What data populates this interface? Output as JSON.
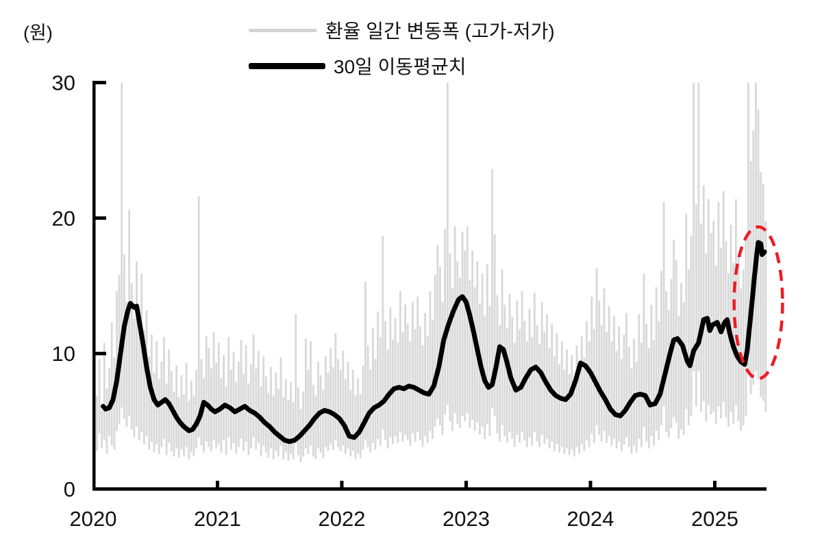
{
  "chart_data": {
    "type": "line",
    "title": "",
    "ylabel": "(원)",
    "unit_label": "(원)",
    "x_axis": {
      "ticks": [
        2020,
        2021,
        2022,
        2023,
        2024,
        2025
      ],
      "tick_labels": [
        "2020",
        "2021",
        "2022",
        "2023",
        "2024",
        "2025"
      ],
      "range": [
        2020.0,
        2025.42
      ]
    },
    "y_axis": {
      "ticks": [
        0,
        10,
        20,
        30
      ],
      "tick_labels": [
        "0",
        "10",
        "20",
        "30"
      ],
      "range": [
        0,
        30
      ]
    },
    "legend_position": "top-center",
    "grid": false,
    "series": [
      {
        "name": "환율 일간 변동폭 (고가-저가)",
        "type": "daily-range-spikes",
        "color": "#d8d8d8",
        "x_start": 2020.01,
        "x_step": 0.02,
        "hi": [
          11.8,
          6.9,
          9.6,
          5.8,
          10.8,
          7.4,
          8.9,
          12.3,
          9.7,
          14.6,
          15.8,
          30,
          17.3,
          13.8,
          20.6,
          15.2,
          12.6,
          16.8,
          13.4,
          15.9,
          11.7,
          13.2,
          9.8,
          11.4,
          8.6,
          10.9,
          8.1,
          9.4,
          11.2,
          7.8,
          10.3,
          8.7,
          7.2,
          9.1,
          6.8,
          8.4,
          7.0,
          9.3,
          6.5,
          8.0,
          6.9,
          8.8,
          21.6,
          9.6,
          8.2,
          11.3,
          10.4,
          8.9,
          11.6,
          9.3,
          10.8,
          8.2,
          9.9,
          7.6,
          11.2,
          8.8,
          10.1,
          7.9,
          9.4,
          11.0,
          8.5,
          10.6,
          7.8,
          9.2,
          11.4,
          8.9,
          10.2,
          7.6,
          9.8,
          8.3,
          7.1,
          9.0,
          6.9,
          8.6,
          7.4,
          9.7,
          6.8,
          8.1,
          6.6,
          7.9,
          6.4,
          12.9,
          7.5,
          5.9,
          7.2,
          11.1,
          8.8,
          10.9,
          7.7,
          6.9,
          9.4,
          8.4,
          7.3,
          9.8,
          8.6,
          10.4,
          9.0,
          11.5,
          9.6,
          8.8,
          10.2,
          8.1,
          9.4,
          7.3,
          8.8,
          6.9,
          8.2,
          7.0,
          9.1,
          15.3,
          10.6,
          8.8,
          11.9,
          9.6,
          13.1,
          11.2,
          18.7,
          12.4,
          10.3,
          13.4,
          11.0,
          12.6,
          10.8,
          14.6,
          11.6,
          13.6,
          12.2,
          10.9,
          13.8,
          11.8,
          14.2,
          12.0,
          10.6,
          13.0,
          11.3,
          14.6,
          12.5,
          15.8,
          18.0,
          16.4,
          13.8,
          19.2,
          30,
          17.4,
          14.8,
          19.4,
          16.8,
          15.6,
          19.0,
          17.6,
          19.4,
          15.4,
          17.6,
          14.9,
          16.8,
          13.7,
          15.9,
          12.8,
          16.6,
          13.5,
          23.6,
          18.8,
          14.3,
          12.1,
          16.2,
          13.6,
          11.9,
          14.4,
          12.7,
          10.8,
          13.9,
          11.8,
          14.6,
          12.4,
          10.9,
          13.3,
          11.2,
          14.5,
          12.1,
          10.7,
          13.8,
          11.6,
          12.9,
          10.4,
          12.2,
          9.8,
          11.5,
          9.2,
          10.9,
          8.8,
          10.3,
          8.5,
          9.9,
          8.2,
          10.6,
          9.1,
          11.3,
          9.7,
          12.4,
          10.9,
          14.2,
          11.8,
          16.3,
          13.9,
          12.1,
          14.8,
          11.6,
          13.5,
          10.9,
          12.8,
          10.2,
          12.0,
          9.6,
          11.4,
          13.0,
          10.5,
          8.9,
          11.1,
          9.4,
          12.9,
          10.8,
          15.9,
          12.2,
          10.4,
          13.6,
          11.0,
          14.9,
          12.4,
          16.1,
          21.2,
          14.6,
          13.2,
          15.5,
          18.4,
          16.9,
          12.8,
          15.2,
          13.8,
          20.3,
          16.2,
          18.7,
          30,
          21.0,
          30,
          19.6,
          22.4,
          17.4,
          21.4,
          18.9,
          19.8,
          16.5,
          21.2,
          17.8,
          22.0,
          18.3,
          15.9,
          19.5,
          16.7,
          21.4,
          17.2,
          14.8,
          16.2,
          18.6,
          30,
          24.2,
          26.5,
          30,
          28.0,
          23.4,
          22.5,
          19.8
        ],
        "lo": [
          3.4,
          2.8,
          4.1,
          3.0,
          3.6,
          2.6,
          3.9,
          3.2,
          2.9,
          4.3,
          4.8,
          6.0,
          5.2,
          4.6,
          5.4,
          4.4,
          3.8,
          4.6,
          3.6,
          4.2,
          3.3,
          3.9,
          2.9,
          3.5,
          2.7,
          3.3,
          2.6,
          3.1,
          3.7,
          2.5,
          3.4,
          2.8,
          2.4,
          3.0,
          2.3,
          2.9,
          2.4,
          3.1,
          2.2,
          2.7,
          2.4,
          3.0,
          3.8,
          3.2,
          2.7,
          3.5,
          3.1,
          2.8,
          3.6,
          3.0,
          3.3,
          2.7,
          3.6,
          2.5,
          3.8,
          2.9,
          3.4,
          2.6,
          3.1,
          3.7,
          2.8,
          3.5,
          2.5,
          3.0,
          3.8,
          2.9,
          3.4,
          2.4,
          3.2,
          2.7,
          2.3,
          3.0,
          2.2,
          2.8,
          2.4,
          3.2,
          2.2,
          2.7,
          2.1,
          2.6,
          2.2,
          3.4,
          2.5,
          2.0,
          2.4,
          3.0,
          2.6,
          3.2,
          2.4,
          2.2,
          3.0,
          2.7,
          2.3,
          3.1,
          2.8,
          3.3,
          2.9,
          3.6,
          3.1,
          2.8,
          3.2,
          2.6,
          3.0,
          2.4,
          2.8,
          2.2,
          2.6,
          2.3,
          2.9,
          3.6,
          3.1,
          2.7,
          3.4,
          2.9,
          3.7,
          3.2,
          4.4,
          3.6,
          3.0,
          3.8,
          3.3,
          3.9,
          3.4,
          4.2,
          3.5,
          4.0,
          3.6,
          3.2,
          4.1,
          3.5,
          4.2,
          3.6,
          3.1,
          3.9,
          3.4,
          4.3,
          3.7,
          4.6,
          5.2,
          4.7,
          4.0,
          5.5,
          6.2,
          5.0,
          4.3,
          5.6,
          4.8,
          4.5,
          5.4,
          5.0,
          5.6,
          4.5,
          5.1,
          4.3,
          4.9,
          4.0,
          4.6,
          3.7,
          4.8,
          3.9,
          6.0,
          5.4,
          4.1,
          3.5,
          4.7,
          3.9,
          3.4,
          4.2,
          3.7,
          3.1,
          4.0,
          3.4,
          4.2,
          3.6,
          3.1,
          3.8,
          3.2,
          4.2,
          3.5,
          3.1,
          4.0,
          3.3,
          3.7,
          3.0,
          3.5,
          2.8,
          3.3,
          2.7,
          3.1,
          2.6,
          3.0,
          2.5,
          2.9,
          2.4,
          3.1,
          2.6,
          3.3,
          2.8,
          3.6,
          3.1,
          4.1,
          3.4,
          4.7,
          4.0,
          3.5,
          4.3,
          3.4,
          3.9,
          3.2,
          3.7,
          3.0,
          3.5,
          2.8,
          3.3,
          3.8,
          3.1,
          2.6,
          3.2,
          2.7,
          3.7,
          3.1,
          4.6,
          3.5,
          3.0,
          3.9,
          3.2,
          4.3,
          3.6,
          4.7,
          6.1,
          4.2,
          3.8,
          4.5,
          5.3,
          4.9,
          3.7,
          4.4,
          4.0,
          5.9,
          4.7,
          5.4,
          8.7,
          6.1,
          8.7,
          5.7,
          6.5,
          5.0,
          6.2,
          5.5,
          5.7,
          4.8,
          6.1,
          5.2,
          6.4,
          5.3,
          4.6,
          5.7,
          4.8,
          6.2,
          5.0,
          4.3,
          4.7,
          5.4,
          8.7,
          7.0,
          7.7,
          8.7,
          8.1,
          6.8,
          6.5,
          5.7
        ]
      },
      {
        "name": "30일 이동평균치",
        "type": "line",
        "color": "#000000",
        "points": [
          [
            2020.08,
            6.1
          ],
          [
            2020.1,
            5.9
          ],
          [
            2020.13,
            6.0
          ],
          [
            2020.16,
            6.6
          ],
          [
            2020.19,
            8.0
          ],
          [
            2020.22,
            10.0
          ],
          [
            2020.25,
            12.0
          ],
          [
            2020.28,
            13.2
          ],
          [
            2020.3,
            13.7
          ],
          [
            2020.33,
            13.4
          ],
          [
            2020.35,
            13.5
          ],
          [
            2020.37,
            12.4
          ],
          [
            2020.4,
            10.8
          ],
          [
            2020.43,
            9.0
          ],
          [
            2020.46,
            7.5
          ],
          [
            2020.49,
            6.6
          ],
          [
            2020.52,
            6.2
          ],
          [
            2020.55,
            6.4
          ],
          [
            2020.58,
            6.6
          ],
          [
            2020.61,
            6.3
          ],
          [
            2020.64,
            5.8
          ],
          [
            2020.67,
            5.3
          ],
          [
            2020.7,
            4.9
          ],
          [
            2020.73,
            4.6
          ],
          [
            2020.77,
            4.3
          ],
          [
            2020.8,
            4.4
          ],
          [
            2020.83,
            4.8
          ],
          [
            2020.86,
            5.4
          ],
          [
            2020.89,
            6.4
          ],
          [
            2020.92,
            6.2
          ],
          [
            2020.95,
            5.9
          ],
          [
            2020.98,
            5.7
          ],
          [
            2021.02,
            5.9
          ],
          [
            2021.06,
            6.2
          ],
          [
            2021.1,
            6.0
          ],
          [
            2021.14,
            5.7
          ],
          [
            2021.18,
            5.9
          ],
          [
            2021.22,
            6.1
          ],
          [
            2021.26,
            5.8
          ],
          [
            2021.3,
            5.6
          ],
          [
            2021.34,
            5.3
          ],
          [
            2021.38,
            4.9
          ],
          [
            2021.42,
            4.6
          ],
          [
            2021.46,
            4.2
          ],
          [
            2021.5,
            3.9
          ],
          [
            2021.54,
            3.6
          ],
          [
            2021.58,
            3.5
          ],
          [
            2021.62,
            3.6
          ],
          [
            2021.66,
            3.9
          ],
          [
            2021.7,
            4.3
          ],
          [
            2021.74,
            4.7
          ],
          [
            2021.78,
            5.2
          ],
          [
            2021.82,
            5.6
          ],
          [
            2021.86,
            5.8
          ],
          [
            2021.9,
            5.7
          ],
          [
            2021.94,
            5.5
          ],
          [
            2021.98,
            5.2
          ],
          [
            2022.02,
            4.7
          ],
          [
            2022.06,
            3.9
          ],
          [
            2022.1,
            3.8
          ],
          [
            2022.14,
            4.2
          ],
          [
            2022.18,
            4.9
          ],
          [
            2022.22,
            5.6
          ],
          [
            2022.26,
            6.0
          ],
          [
            2022.3,
            6.2
          ],
          [
            2022.34,
            6.5
          ],
          [
            2022.38,
            7.0
          ],
          [
            2022.42,
            7.4
          ],
          [
            2022.46,
            7.5
          ],
          [
            2022.5,
            7.4
          ],
          [
            2022.54,
            7.6
          ],
          [
            2022.58,
            7.5
          ],
          [
            2022.62,
            7.3
          ],
          [
            2022.66,
            7.1
          ],
          [
            2022.7,
            7.0
          ],
          [
            2022.74,
            7.6
          ],
          [
            2022.78,
            9.0
          ],
          [
            2022.82,
            11.0
          ],
          [
            2022.86,
            12.2
          ],
          [
            2022.9,
            13.2
          ],
          [
            2022.94,
            14.0
          ],
          [
            2022.97,
            14.2
          ],
          [
            2023.0,
            13.8
          ],
          [
            2023.03,
            12.8
          ],
          [
            2023.06,
            11.6
          ],
          [
            2023.09,
            10.3
          ],
          [
            2023.12,
            9.0
          ],
          [
            2023.15,
            8.0
          ],
          [
            2023.18,
            7.5
          ],
          [
            2023.21,
            7.7
          ],
          [
            2023.24,
            9.0
          ],
          [
            2023.27,
            10.5
          ],
          [
            2023.3,
            10.3
          ],
          [
            2023.33,
            9.3
          ],
          [
            2023.36,
            8.2
          ],
          [
            2023.4,
            7.3
          ],
          [
            2023.44,
            7.5
          ],
          [
            2023.48,
            8.2
          ],
          [
            2023.52,
            8.8
          ],
          [
            2023.56,
            9.0
          ],
          [
            2023.6,
            8.6
          ],
          [
            2023.64,
            7.9
          ],
          [
            2023.68,
            7.3
          ],
          [
            2023.72,
            6.9
          ],
          [
            2023.76,
            6.7
          ],
          [
            2023.8,
            6.6
          ],
          [
            2023.84,
            7.0
          ],
          [
            2023.88,
            8.0
          ],
          [
            2023.92,
            9.3
          ],
          [
            2023.96,
            9.1
          ],
          [
            2024.0,
            8.6
          ],
          [
            2024.04,
            7.9
          ],
          [
            2024.08,
            7.2
          ],
          [
            2024.12,
            6.6
          ],
          [
            2024.16,
            5.9
          ],
          [
            2024.2,
            5.5
          ],
          [
            2024.24,
            5.4
          ],
          [
            2024.28,
            5.8
          ],
          [
            2024.32,
            6.4
          ],
          [
            2024.36,
            6.9
          ],
          [
            2024.4,
            7.0
          ],
          [
            2024.44,
            6.9
          ],
          [
            2024.48,
            6.2
          ],
          [
            2024.52,
            6.3
          ],
          [
            2024.56,
            7.0
          ],
          [
            2024.6,
            8.5
          ],
          [
            2024.64,
            10.0
          ],
          [
            2024.67,
            11.0
          ],
          [
            2024.7,
            11.1
          ],
          [
            2024.74,
            10.6
          ],
          [
            2024.78,
            9.4
          ],
          [
            2024.8,
            9.1
          ],
          [
            2024.83,
            10.2
          ],
          [
            2024.87,
            10.8
          ],
          [
            2024.91,
            12.5
          ],
          [
            2024.94,
            12.6
          ],
          [
            2024.96,
            11.7
          ],
          [
            2024.98,
            12.1
          ],
          [
            2025.02,
            12.3
          ],
          [
            2025.05,
            11.6
          ],
          [
            2025.08,
            12.3
          ],
          [
            2025.1,
            12.5
          ],
          [
            2025.12,
            11.5
          ],
          [
            2025.15,
            10.5
          ],
          [
            2025.18,
            9.8
          ],
          [
            2025.21,
            9.4
          ],
          [
            2025.24,
            9.2
          ],
          [
            2025.26,
            10.2
          ],
          [
            2025.28,
            12.0
          ],
          [
            2025.3,
            13.8
          ],
          [
            2025.32,
            15.8
          ],
          [
            2025.34,
            17.5
          ],
          [
            2025.35,
            18.2
          ],
          [
            2025.37,
            18.1
          ],
          [
            2025.38,
            17.3
          ],
          [
            2025.4,
            17.5
          ]
        ]
      }
    ],
    "annotation": {
      "shape": "dashed-ellipse",
      "cx": 2025.35,
      "cy": 13.75,
      "rx_years": 0.195,
      "ry_units": 5.6,
      "color": "#ed1c24"
    }
  },
  "legend": [
    {
      "label": "환율 일간 변동폭 (고가-저가)",
      "color": "#d3d3d3"
    },
    {
      "label": "30일 이동평균치",
      "color": "#000000"
    }
  ],
  "colors": {
    "daily_range": "#d8d8d8",
    "moving_average": "#000000",
    "highlight_red": "#ed1c24",
    "axis": "#000000",
    "text": "#111111"
  }
}
